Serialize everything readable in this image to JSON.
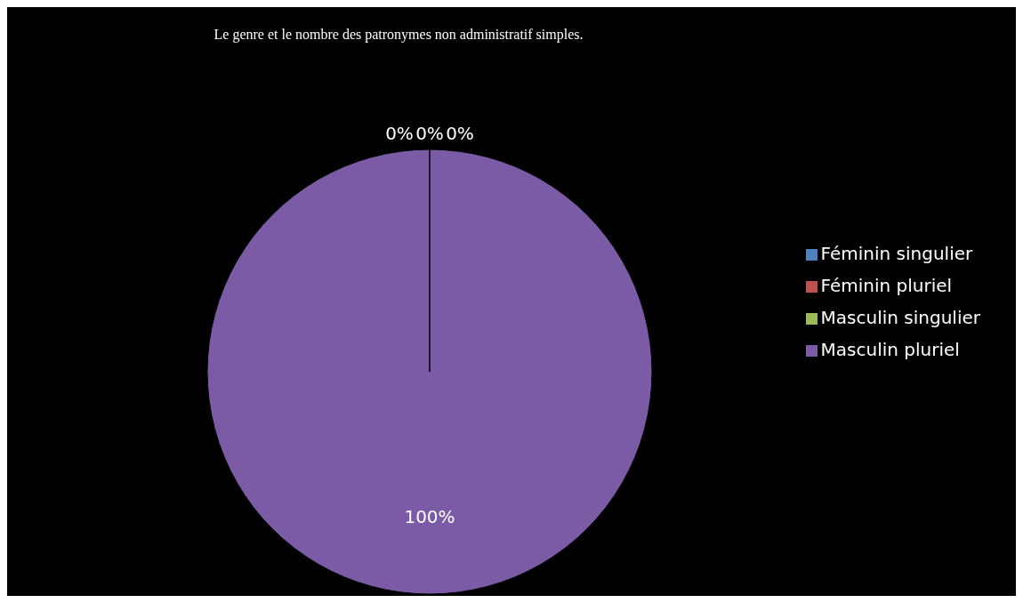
{
  "chart_data": {
    "type": "pie",
    "title": "Le genre et le nombre des patronymes non administratif simples.",
    "categories": [
      "Féminin singulier",
      "Féminin pluriel",
      "Masculin singulier",
      "Masculin pluriel"
    ],
    "values": [
      0,
      0,
      0,
      100
    ],
    "colors": [
      "#4f81bd",
      "#c0504d",
      "#9bbb59",
      "#7b5ba6"
    ],
    "value_labels": [
      "0%",
      "0%",
      "0%",
      "100%"
    ],
    "legend": "right"
  }
}
